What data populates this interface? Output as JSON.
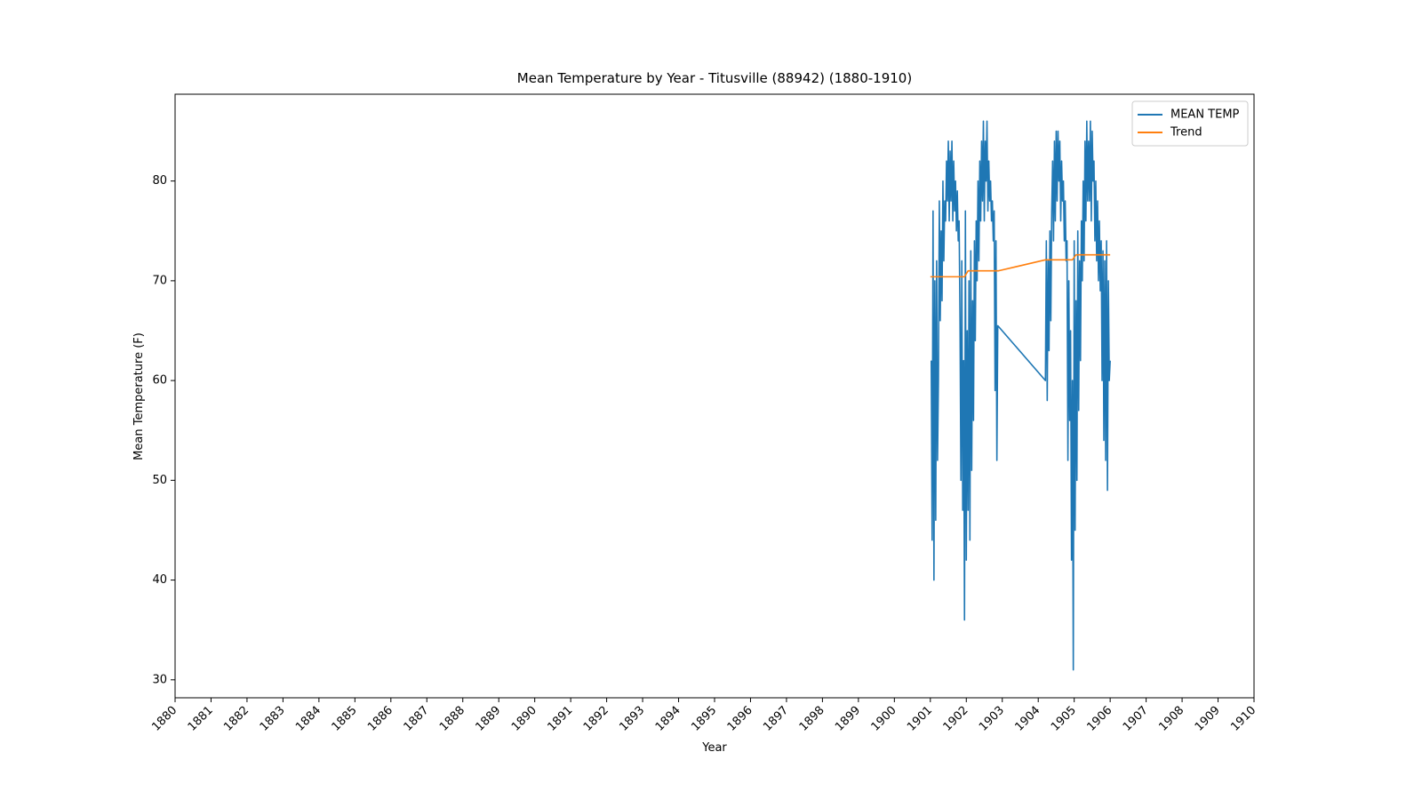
{
  "chart_data": {
    "type": "line",
    "title": "Mean Temperature by Year - Titusville (88942) (1880-1910)",
    "xlabel": "Year",
    "ylabel": "Mean Temperature (F)",
    "xlim": [
      1880,
      1910
    ],
    "ylim": [
      28.2,
      88.7
    ],
    "xticks": [
      1880,
      1881,
      1882,
      1883,
      1884,
      1885,
      1886,
      1887,
      1888,
      1889,
      1890,
      1891,
      1892,
      1893,
      1894,
      1895,
      1896,
      1897,
      1898,
      1899,
      1900,
      1901,
      1902,
      1903,
      1904,
      1905,
      1906,
      1907,
      1908,
      1909,
      1910
    ],
    "yticks": [
      30,
      40,
      50,
      60,
      70,
      80
    ],
    "legend": "upper right",
    "series": [
      {
        "name": "MEAN TEMP",
        "color": "#1f77b4",
        "x": [
          1901.025,
          1901.05,
          1901.075,
          1901.1,
          1901.125,
          1901.15,
          1901.175,
          1901.2,
          1901.225,
          1901.25,
          1901.275,
          1901.3,
          1901.325,
          1901.35,
          1901.375,
          1901.4,
          1901.425,
          1901.45,
          1901.475,
          1901.5,
          1901.525,
          1901.55,
          1901.575,
          1901.6,
          1901.625,
          1901.65,
          1901.675,
          1901.7,
          1901.725,
          1901.75,
          1901.775,
          1901.8,
          1901.825,
          1901.85,
          1901.875,
          1901.9,
          1901.925,
          1901.95,
          1901.975,
          1902.0,
          1902.025,
          1902.05,
          1902.075,
          1902.1,
          1902.125,
          1902.15,
          1902.175,
          1902.2,
          1902.225,
          1902.25,
          1902.275,
          1902.3,
          1902.325,
          1902.35,
          1902.375,
          1902.4,
          1902.425,
          1902.45,
          1902.475,
          1902.5,
          1902.525,
          1902.55,
          1902.575,
          1902.6,
          1902.625,
          1902.65,
          1902.675,
          1902.7,
          1902.725,
          1902.75,
          1902.775,
          1902.8,
          1902.825,
          1902.85,
          1902.875,
          1904.2,
          1904.225,
          1904.25,
          1904.275,
          1904.3,
          1904.325,
          1904.35,
          1904.375,
          1904.4,
          1904.425,
          1904.45,
          1904.475,
          1904.5,
          1904.525,
          1904.55,
          1904.575,
          1904.6,
          1904.625,
          1904.65,
          1904.675,
          1904.7,
          1904.725,
          1904.75,
          1904.775,
          1904.8,
          1904.825,
          1904.85,
          1904.875,
          1904.9,
          1904.925,
          1904.95,
          1904.975,
          1905.0,
          1905.025,
          1905.05,
          1905.075,
          1905.1,
          1905.125,
          1905.15,
          1905.175,
          1905.2,
          1905.225,
          1905.25,
          1905.275,
          1905.3,
          1905.325,
          1905.35,
          1905.375,
          1905.4,
          1905.425,
          1905.45,
          1905.475,
          1905.5,
          1905.525,
          1905.55,
          1905.575,
          1905.6,
          1905.625,
          1905.65,
          1905.675,
          1905.7,
          1905.725,
          1905.75,
          1905.775,
          1905.8,
          1905.825,
          1905.85,
          1905.875,
          1905.9,
          1905.925,
          1905.95,
          1905.975,
          1906.0
        ],
        "values": [
          62,
          44,
          77,
          40,
          70,
          46,
          72,
          52,
          60,
          78,
          66,
          75,
          68,
          80,
          72,
          78,
          76,
          82,
          78,
          84,
          76,
          83,
          78,
          84,
          76,
          82,
          77,
          80,
          75,
          79,
          74,
          76,
          66,
          50,
          72,
          47,
          62,
          36,
          77,
          42,
          65,
          47,
          70,
          44,
          73,
          51,
          68,
          56,
          74,
          64,
          76,
          70,
          80,
          72,
          82,
          76,
          84,
          78,
          86,
          76,
          84,
          80,
          86,
          77,
          82,
          78,
          80,
          76,
          78,
          74,
          77,
          59,
          74,
          52,
          65.5,
          60,
          74,
          58,
          72,
          63,
          75,
          66,
          77,
          82,
          74,
          84,
          76,
          85,
          78,
          85,
          80,
          84,
          76,
          82,
          78,
          80,
          74,
          78,
          72,
          74,
          52,
          70,
          56,
          65,
          42,
          60,
          31,
          74,
          45,
          68,
          50,
          75,
          57,
          72,
          62,
          76,
          70,
          80,
          72,
          84,
          76,
          86,
          78,
          84,
          78,
          86,
          76,
          85,
          80,
          82,
          74,
          80,
          72,
          78,
          70,
          76,
          69,
          74,
          60,
          73,
          54,
          72,
          52,
          74,
          49,
          70,
          60,
          62
        ]
      },
      {
        "name": "Trend",
        "color": "#ff7f0e",
        "x": [
          1901.0,
          1901.95,
          1902.05,
          1902.9,
          1904.2,
          1904.95,
          1905.05,
          1906.0
        ],
        "values": [
          70.4,
          70.4,
          71,
          71,
          72.1,
          72.1,
          72.6,
          72.6
        ]
      }
    ]
  }
}
